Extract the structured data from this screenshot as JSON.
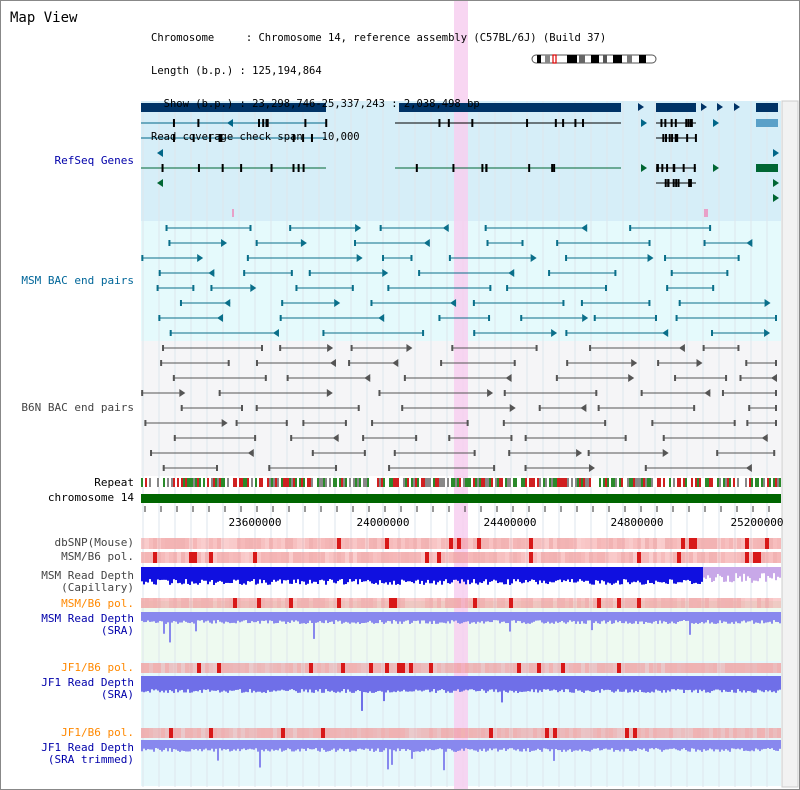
{
  "view_title": "Map View",
  "info": {
    "chromosome_line": "Chromosome     : Chromosome 14, reference assembly (C57BL/6J) (Build 37)",
    "length_line": "Length (b.p.) : 125,194,864",
    "show_line": "  Show (b.p.) : 23,298,746-25,337,243 : 2,038,498 bp",
    "coverage_line": "Read coverage check span : 10,000"
  },
  "tracks": {
    "refseq": "RefSeq Genes",
    "msm_bac": "MSM BAC end pairs",
    "b6n_bac": "B6N BAC end pairs",
    "repeat": "Repeat",
    "chromosome": "chromosome 14",
    "dbsnp": "dbSNP(Mouse)",
    "msm_b6_pol_1": "MSM/B6 pol.",
    "msm_depth_cap": "MSM Read Depth\n(Capillary)",
    "msm_b6_pol_2": "MSM/B6 pol.",
    "msm_depth_sra": "MSM Read Depth\n(SRA)",
    "jf1_b6_pol_1": "JF1/B6 pol.",
    "jf1_depth_sra": "JF1 Read Depth\n(SRA)",
    "jf1_b6_pol_2": "JF1/B6 pol.",
    "jf1_depth_trim": "JF1 Read Depth\n(SRA trimmed)"
  },
  "scale_ticks": [
    "23600000",
    "24000000",
    "24400000",
    "24800000",
    "25200000"
  ],
  "colors": {
    "refseq_label": "#0000aa",
    "msm_label": "#006699",
    "b6n_label": "#444444",
    "orange_label": "#ff8800",
    "highlight": "#f7cff0",
    "refseq_bg": "#d6eef8",
    "msm_bg": "#e5fafc",
    "b6n_bg": "#f5f5f7",
    "gene_dark": "#003366",
    "gene_teal": "#006688",
    "gene_green": "#006633",
    "chrom_green": "#006600"
  }
}
